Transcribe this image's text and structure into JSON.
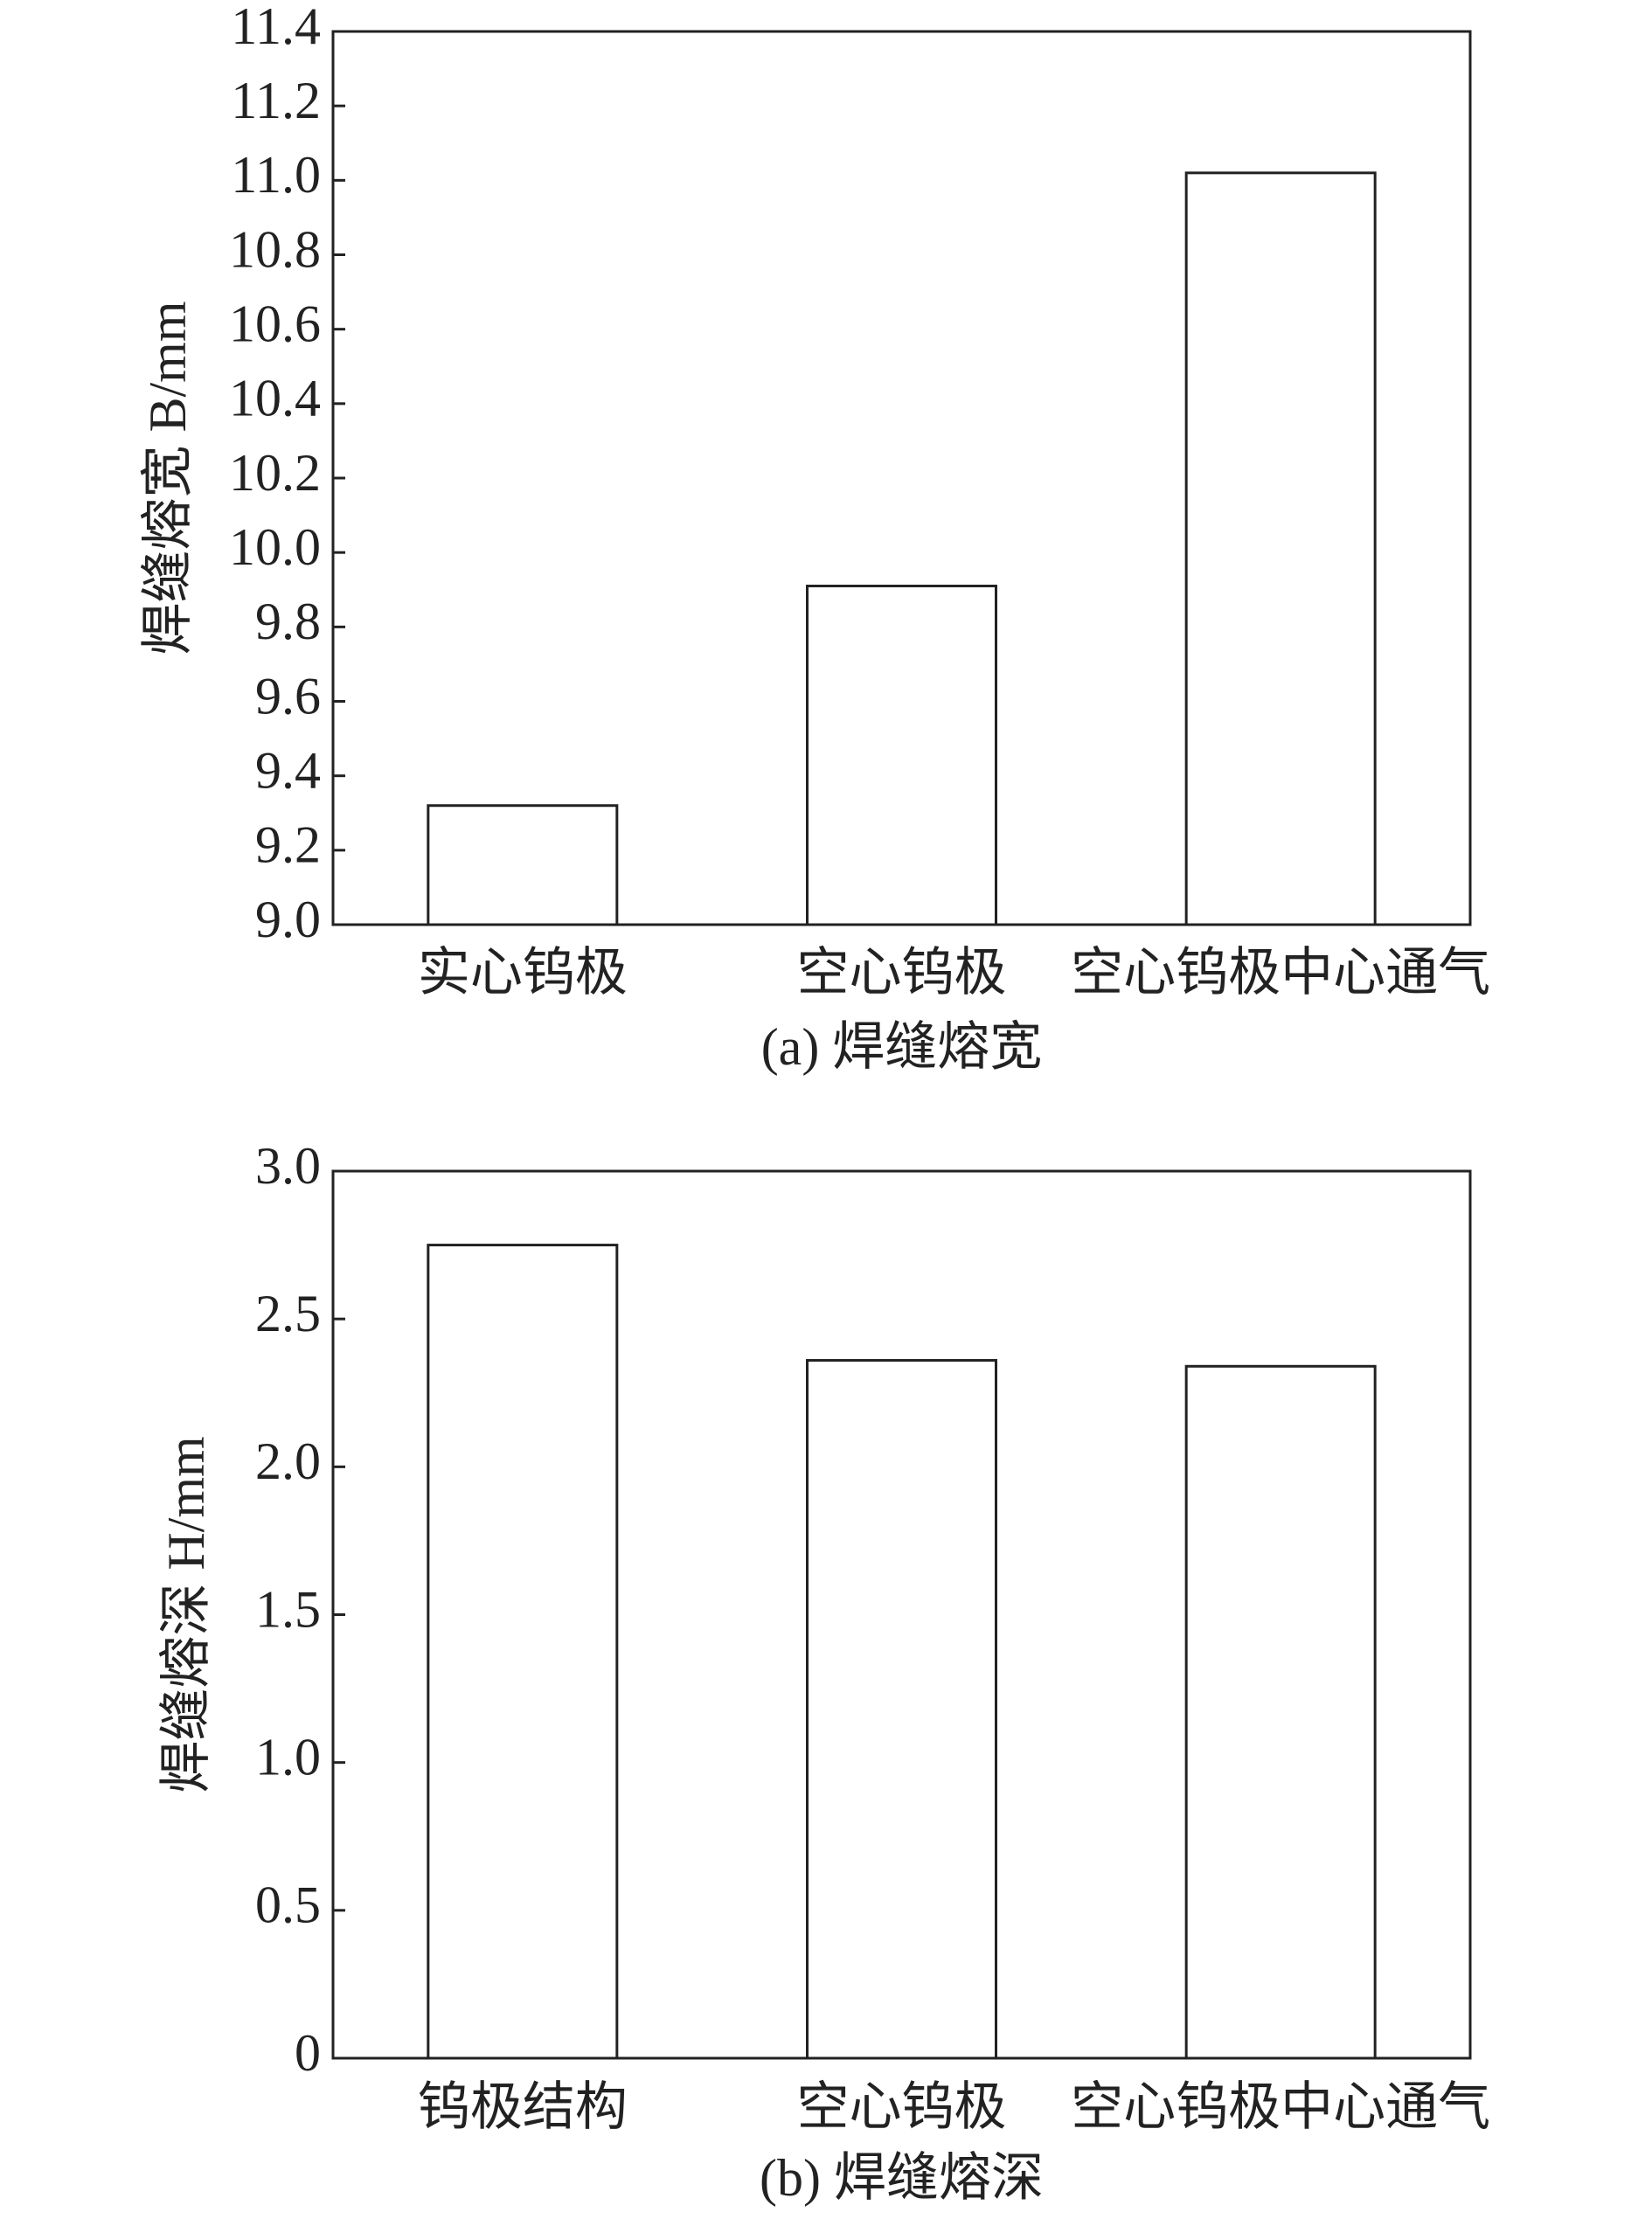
{
  "chart_data": [
    {
      "type": "bar",
      "caption": "(a) 焊缝熔宽",
      "ylabel": "焊缝熔宽 B/mm",
      "categories": [
        "实心钨极",
        "空心钨极",
        "空心钨极中心通气"
      ],
      "values": [
        9.32,
        9.91,
        11.02
      ],
      "color": "#ffffff",
      "ylim": [
        9.0,
        11.4
      ],
      "yticks": [
        {
          "value": 9,
          "label": "9.0"
        },
        9.2,
        9.4,
        9.6,
        9.8,
        {
          "value": 10,
          "label": "10.0"
        },
        10.2,
        10.4,
        10.6,
        10.8,
        {
          "value": 11,
          "label": "11.0"
        },
        11.2,
        11.4
      ]
    },
    {
      "type": "bar",
      "caption": "(b) 焊缝熔深",
      "ylabel": "焊缝熔深 H/mm",
      "categories": [
        "钨极结构",
        "空心钨极",
        "空心钨极中心通气"
      ],
      "values": [
        2.75,
        2.36,
        2.34
      ],
      "color": "#ffffff",
      "ylim": [
        0,
        3
      ],
      "yticks": [
        0,
        0.5,
        {
          "value": 1,
          "label": "1.0"
        },
        1.5,
        {
          "value": 2,
          "label": "2.0"
        },
        2.5,
        {
          "value": 3,
          "label": "3.0"
        }
      ]
    }
  ]
}
